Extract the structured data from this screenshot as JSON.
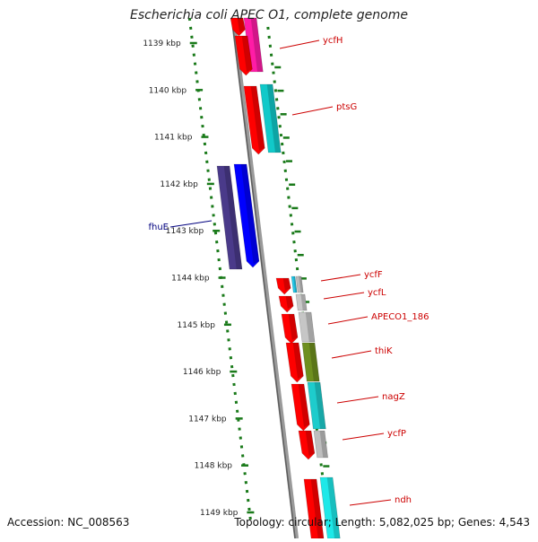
{
  "title": "Escherichia coli APEC O1, complete genome",
  "accession": "Accession: NC_008563",
  "topology": "Topology: circular; Length: 5,082,025 bp; Genes: 4,543",
  "colors": {
    "background": "#ffffff",
    "backbone": "#808080",
    "tick": "#1a7a1a",
    "label_red": "#cc0000",
    "label_blue": "#00007f"
  },
  "ticks": [
    {
      "label": "1139 kbp"
    },
    {
      "label": "1140 kbp"
    },
    {
      "label": "1141 kbp"
    },
    {
      "label": "1142 kbp"
    },
    {
      "label": "1143 kbp"
    },
    {
      "label": "1144 kbp"
    },
    {
      "label": "1145 kbp"
    },
    {
      "label": "1146 kbp"
    },
    {
      "label": "1147 kbp"
    },
    {
      "label": "1148 kbp"
    },
    {
      "label": "1149 kbp"
    }
  ],
  "genes": [
    {
      "name": "ycfH"
    },
    {
      "name": "ptsG"
    },
    {
      "name": "fhuE"
    },
    {
      "name": "ycfF"
    },
    {
      "name": "ycfL"
    },
    {
      "name": "APECO1_186"
    },
    {
      "name": "thiK"
    },
    {
      "name": "nagZ"
    },
    {
      "name": "ycfP"
    },
    {
      "name": "ndh"
    }
  ]
}
